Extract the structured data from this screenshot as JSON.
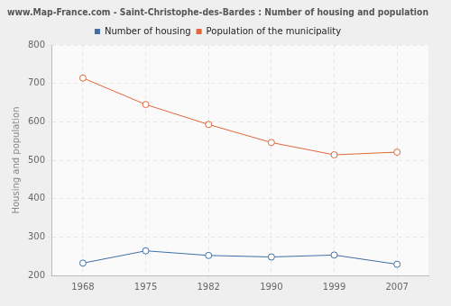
{
  "chart_data": {
    "type": "line",
    "title": "www.Map-France.com - Saint-Christophe-des-Bardes : Number of housing and population",
    "y_label": "Housing and population",
    "categories": [
      "1968",
      "1975",
      "1982",
      "1990",
      "1999",
      "2007"
    ],
    "series": [
      {
        "name": "Number of housing",
        "color": "#3f6fa5",
        "values": [
          232,
          264,
          252,
          248,
          253,
          229
        ]
      },
      {
        "name": "Population of the municipality",
        "color": "#e0673a",
        "values": [
          714,
          645,
          593,
          546,
          514,
          521
        ]
      }
    ],
    "ylim": [
      200,
      800
    ],
    "yticks": [
      200,
      300,
      400,
      500,
      600,
      700,
      800
    ],
    "grid": true,
    "legend": "top",
    "marker": "circle"
  }
}
